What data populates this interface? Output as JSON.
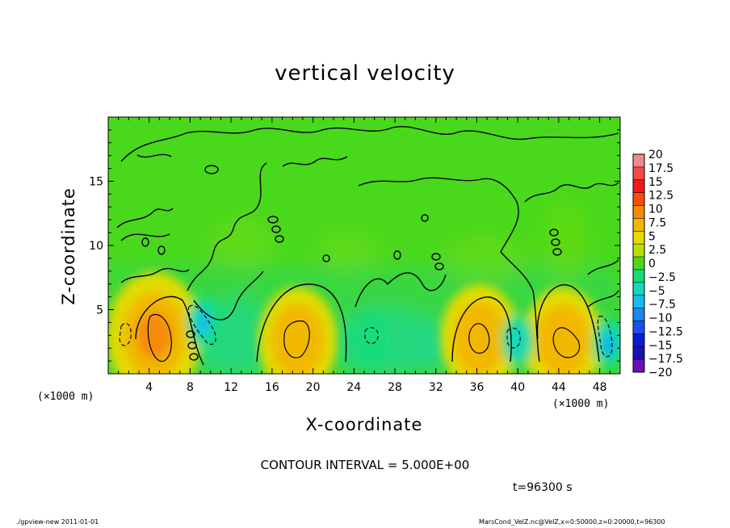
{
  "chart_data": {
    "type": "heatmap",
    "title": "vertical velocity",
    "xlabel": "X-coordinate",
    "ylabel": "Z-coordinate",
    "x_unit_label": "(×1000 m)",
    "xlim": [
      0,
      50
    ],
    "ylim": [
      0,
      20
    ],
    "x_ticks": [
      4,
      8,
      12,
      16,
      20,
      24,
      28,
      32,
      36,
      40,
      44,
      48
    ],
    "y_ticks": [
      5,
      10,
      15
    ],
    "colorbar": {
      "levels": [
        20,
        17.5,
        15,
        12.5,
        10,
        7.5,
        5,
        2.5,
        0,
        -2.5,
        -5,
        -7.5,
        -10,
        -12.5,
        -15,
        -17.5,
        -20
      ],
      "labels": [
        "20",
        "17.5",
        "15",
        "12.5",
        "10",
        "7.5",
        "5",
        "2.5",
        "0",
        "−2.5",
        "−5",
        "−7.5",
        "−10",
        "−12.5",
        "−15",
        "−17.5",
        "−20"
      ],
      "colors": [
        "#f08a8a",
        "#f44a4a",
        "#f21818",
        "#f65008",
        "#f68a08",
        "#f2b800",
        "#e2dc00",
        "#b8e000",
        "#4ad81c",
        "#14dc7a",
        "#14d8c0",
        "#18bcec",
        "#1888f0",
        "#1850ec",
        "#0c1ad8",
        "#1a10b0",
        "#6a10b8"
      ]
    },
    "updrafts": [
      {
        "x": 4.5,
        "z": 3.0,
        "w": 9
      },
      {
        "x": 18.5,
        "z": 2.6,
        "w": 7
      },
      {
        "x": 36.3,
        "z": 2.8,
        "w": 7
      },
      {
        "x": 44.4,
        "z": 2.6,
        "w": 7
      }
    ],
    "downdrafts": [
      {
        "x": 9.3,
        "z": 4.0,
        "w": -7.5
      },
      {
        "x": 25.6,
        "z": 2.6,
        "w": -4
      },
      {
        "x": 40.0,
        "z": 2.6,
        "w": -5
      },
      {
        "x": 48.9,
        "z": 2.4,
        "w": -10
      }
    ],
    "contour_interval": "CONTOUR INTERVAL = 5.000E+00",
    "time_label": "t=96300 s"
  },
  "footer": {
    "left": "./gpview-new  2011-01-01",
    "right": "MarsCond_VelZ.nc@VelZ,x=0:50000,z=0:20000,t=96300"
  }
}
